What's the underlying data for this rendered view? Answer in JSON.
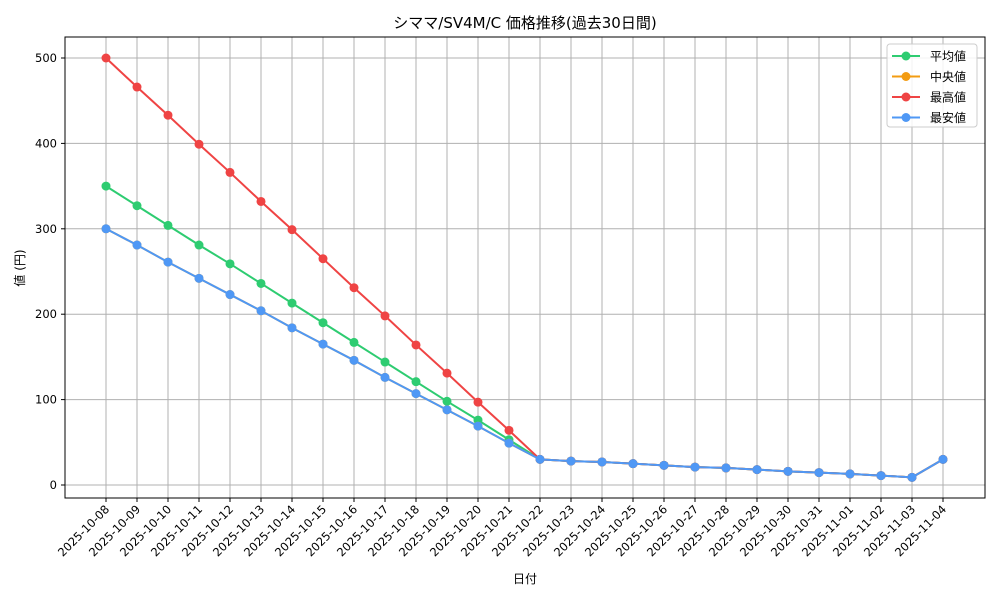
{
  "chart_data": {
    "type": "line",
    "title": "シママ/SV4M/C 価格推移(過去30日間)",
    "xlabel": "日付",
    "ylabel": "値 (円)",
    "ylim": [
      -15,
      525
    ],
    "yticks": [
      0,
      100,
      200,
      300,
      400,
      500
    ],
    "grid": true,
    "legend_position": "upper right",
    "categories": [
      "2025-10-08",
      "2025-10-09",
      "2025-10-10",
      "2025-10-11",
      "2025-10-12",
      "2025-10-13",
      "2025-10-14",
      "2025-10-15",
      "2025-10-16",
      "2025-10-17",
      "2025-10-18",
      "2025-10-19",
      "2025-10-20",
      "2025-10-21",
      "2025-10-22",
      "2025-10-23",
      "2025-10-24",
      "2025-10-25",
      "2025-10-26",
      "2025-10-27",
      "2025-10-28",
      "2025-10-29",
      "2025-10-30",
      "2025-10-31",
      "2025-11-01",
      "2025-11-02",
      "2025-11-03",
      "2025-11-04"
    ],
    "series": [
      {
        "name": "平均値",
        "color": "#2ecc71",
        "values": [
          350,
          327,
          304,
          281,
          259,
          236,
          213,
          190,
          167,
          144,
          121,
          98,
          76,
          53,
          30,
          28,
          27,
          25,
          23,
          21,
          20,
          18,
          16,
          14.5,
          13,
          11,
          9,
          30
        ]
      },
      {
        "name": "中央値",
        "color": "#f39c12",
        "values": [
          300,
          281,
          261,
          242,
          223,
          204,
          184,
          165,
          146,
          126,
          107,
          88,
          69,
          49,
          30,
          28,
          27,
          25,
          23,
          21,
          20,
          18,
          16,
          14.5,
          13,
          11,
          9,
          30
        ]
      },
      {
        "name": "最高値",
        "color": "#ef4444",
        "values": [
          500,
          466,
          433,
          399,
          366,
          332,
          299,
          265,
          231,
          198,
          164,
          131,
          97,
          64,
          30,
          28,
          27,
          25,
          23,
          21,
          20,
          18,
          16,
          14.5,
          13,
          11,
          9,
          30
        ]
      },
      {
        "name": "最安値",
        "color": "#4f98f5",
        "values": [
          300,
          281,
          261,
          242,
          223,
          204,
          184,
          165,
          146,
          126,
          107,
          88,
          69,
          49,
          30,
          28,
          27,
          25,
          23,
          21,
          20,
          18,
          16,
          14.5,
          13,
          11,
          9,
          30
        ]
      }
    ]
  }
}
